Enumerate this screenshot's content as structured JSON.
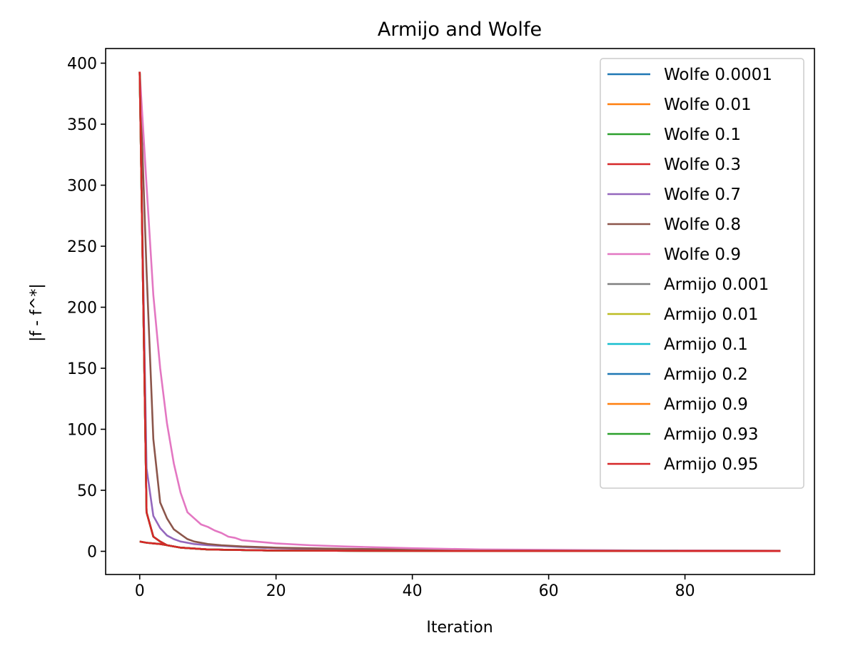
{
  "chart_data": {
    "type": "line",
    "title": "Armijo and Wolfe",
    "xlabel": "Iteration",
    "ylabel": "|f - f^*|",
    "xlim": [
      -5,
      99
    ],
    "ylim": [
      -19,
      412
    ],
    "xticks": [
      0,
      20,
      40,
      60,
      80
    ],
    "yticks": [
      0,
      50,
      100,
      150,
      200,
      250,
      300,
      350,
      400
    ],
    "grid": false,
    "legend_position": "top-right",
    "series": [
      {
        "name": "Wolfe 0.0001",
        "color": "#1f77b4",
        "x_end": 94,
        "points": [
          [
            0,
            8
          ],
          [
            1,
            7
          ],
          [
            2,
            6.5
          ],
          [
            3,
            6
          ],
          [
            4,
            5
          ],
          [
            6,
            3
          ],
          [
            10,
            1.5
          ],
          [
            20,
            0.6
          ],
          [
            40,
            0.3
          ],
          [
            94,
            0.2
          ]
        ]
      },
      {
        "name": "Wolfe 0.01",
        "color": "#ff7f0e",
        "x_end": 94,
        "points": [
          [
            0,
            8
          ],
          [
            1,
            7
          ],
          [
            2,
            6.5
          ],
          [
            3,
            6
          ],
          [
            4,
            5
          ],
          [
            6,
            3
          ],
          [
            10,
            1.5
          ],
          [
            20,
            0.6
          ],
          [
            40,
            0.3
          ],
          [
            94,
            0.2
          ]
        ]
      },
      {
        "name": "Wolfe 0.1",
        "color": "#2ca02c",
        "x_end": 94,
        "points": [
          [
            0,
            8
          ],
          [
            1,
            7
          ],
          [
            2,
            6.5
          ],
          [
            3,
            6
          ],
          [
            4,
            5
          ],
          [
            6,
            3
          ],
          [
            10,
            1.5
          ],
          [
            20,
            0.6
          ],
          [
            40,
            0.3
          ],
          [
            94,
            0.2
          ]
        ]
      },
      {
        "name": "Wolfe 0.3",
        "color": "#d62728",
        "x_end": 94,
        "points": [
          [
            0,
            8
          ],
          [
            1,
            7
          ],
          [
            2,
            6.5
          ],
          [
            3,
            6
          ],
          [
            4,
            5
          ],
          [
            6,
            3
          ],
          [
            10,
            1.5
          ],
          [
            20,
            0.6
          ],
          [
            40,
            0.3
          ],
          [
            94,
            0.2
          ]
        ]
      },
      {
        "name": "Wolfe 0.7",
        "color": "#9467bd",
        "x_end": 94,
        "points": [
          [
            0,
            393
          ],
          [
            1,
            68
          ],
          [
            2,
            29
          ],
          [
            3,
            19
          ],
          [
            4,
            13
          ],
          [
            5,
            10
          ],
          [
            6,
            8
          ],
          [
            8,
            6
          ],
          [
            10,
            5
          ],
          [
            15,
            3.5
          ],
          [
            20,
            2.5
          ],
          [
            30,
            1.5
          ],
          [
            50,
            0.8
          ],
          [
            94,
            0.4
          ]
        ]
      },
      {
        "name": "Wolfe 0.8",
        "color": "#8c564b",
        "x_end": 94,
        "points": [
          [
            0,
            393
          ],
          [
            1,
            230
          ],
          [
            2,
            92
          ],
          [
            3,
            40
          ],
          [
            4,
            27
          ],
          [
            5,
            18
          ],
          [
            6,
            14
          ],
          [
            7,
            10
          ],
          [
            8,
            8
          ],
          [
            10,
            6
          ],
          [
            12,
            5
          ],
          [
            15,
            4
          ],
          [
            20,
            3
          ],
          [
            30,
            2
          ],
          [
            50,
            1
          ],
          [
            94,
            0.5
          ]
        ]
      },
      {
        "name": "Wolfe 0.9",
        "color": "#e377c2",
        "x_end": 94,
        "points": [
          [
            0,
            393
          ],
          [
            1,
            300
          ],
          [
            2,
            210
          ],
          [
            3,
            150
          ],
          [
            4,
            105
          ],
          [
            5,
            72
          ],
          [
            6,
            48
          ],
          [
            7,
            32
          ],
          [
            8,
            27
          ],
          [
            9,
            22
          ],
          [
            10,
            20
          ],
          [
            11,
            17
          ],
          [
            12,
            15
          ],
          [
            13,
            12
          ],
          [
            14,
            11
          ],
          [
            15,
            9
          ],
          [
            17,
            8
          ],
          [
            20,
            6.5
          ],
          [
            25,
            5
          ],
          [
            30,
            4
          ],
          [
            40,
            2.5
          ],
          [
            50,
            1.5
          ],
          [
            70,
            0.8
          ],
          [
            94,
            0.5
          ]
        ]
      },
      {
        "name": "Armijo 0.001",
        "color": "#7f7f7f",
        "x_end": 79,
        "points": [
          [
            0,
            393
          ],
          [
            1,
            32
          ],
          [
            2,
            12
          ],
          [
            3,
            8
          ],
          [
            4,
            5
          ],
          [
            6,
            3
          ],
          [
            10,
            1.5
          ],
          [
            20,
            0.6
          ],
          [
            40,
            0.3
          ],
          [
            79,
            0.2
          ]
        ]
      },
      {
        "name": "Armijo 0.01",
        "color": "#bcbd22",
        "x_end": 79,
        "points": [
          [
            0,
            393
          ],
          [
            1,
            32
          ],
          [
            2,
            12
          ],
          [
            3,
            8
          ],
          [
            4,
            5
          ],
          [
            6,
            3
          ],
          [
            10,
            1.5
          ],
          [
            20,
            0.6
          ],
          [
            40,
            0.3
          ],
          [
            79,
            0.2
          ]
        ]
      },
      {
        "name": "Armijo 0.1",
        "color": "#17becf",
        "x_end": 79,
        "points": [
          [
            0,
            393
          ],
          [
            1,
            32
          ],
          [
            2,
            12
          ],
          [
            3,
            8
          ],
          [
            4,
            5
          ],
          [
            6,
            3
          ],
          [
            10,
            1.5
          ],
          [
            20,
            0.6
          ],
          [
            40,
            0.3
          ],
          [
            79,
            0.2
          ]
        ]
      },
      {
        "name": "Armijo 0.2",
        "color": "#1f77b4",
        "x_end": 79,
        "points": [
          [
            0,
            393
          ],
          [
            1,
            32
          ],
          [
            2,
            12
          ],
          [
            3,
            8
          ],
          [
            4,
            5
          ],
          [
            6,
            3
          ],
          [
            10,
            1.5
          ],
          [
            20,
            0.6
          ],
          [
            40,
            0.3
          ],
          [
            79,
            0.2
          ]
        ]
      },
      {
        "name": "Armijo 0.9",
        "color": "#ff7f0e",
        "x_end": 94,
        "points": [
          [
            0,
            393
          ],
          [
            1,
            32
          ],
          [
            2,
            12
          ],
          [
            3,
            8
          ],
          [
            4,
            5
          ],
          [
            6,
            3
          ],
          [
            10,
            1.5
          ],
          [
            20,
            0.6
          ],
          [
            40,
            0.3
          ],
          [
            94,
            0.2
          ]
        ]
      },
      {
        "name": "Armijo 0.93",
        "color": "#2ca02c",
        "x_end": 94,
        "points": [
          [
            0,
            393
          ],
          [
            1,
            32
          ],
          [
            2,
            12
          ],
          [
            3,
            8
          ],
          [
            4,
            5
          ],
          [
            6,
            3
          ],
          [
            10,
            1.5
          ],
          [
            20,
            0.6
          ],
          [
            40,
            0.3
          ],
          [
            94,
            0.2
          ]
        ]
      },
      {
        "name": "Armijo 0.95",
        "color": "#d62728",
        "x_end": 94,
        "points": [
          [
            0,
            393
          ],
          [
            1,
            32
          ],
          [
            2,
            12
          ],
          [
            3,
            8
          ],
          [
            4,
            5
          ],
          [
            6,
            3
          ],
          [
            10,
            1.5
          ],
          [
            20,
            0.6
          ],
          [
            40,
            0.3
          ],
          [
            94,
            0.2
          ]
        ]
      }
    ]
  }
}
